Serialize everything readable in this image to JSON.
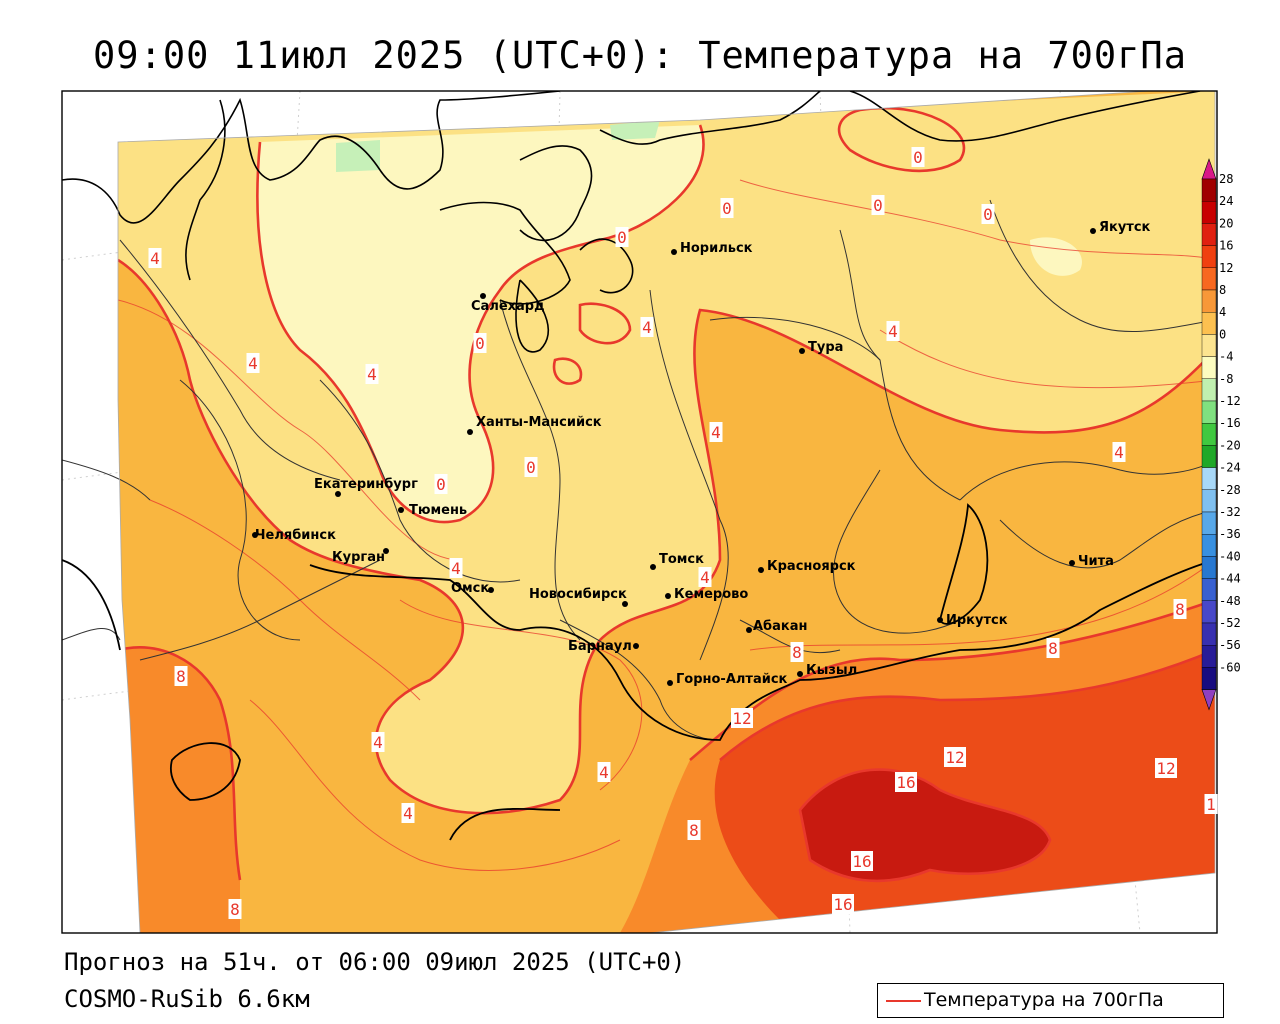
{
  "title": "09:00 11июл 2025 (UTC+0): Температура на 700гПа",
  "forecast_text": "Прогноз на 51ч. от 06:00 09июл 2025 (UTC+0)",
  "model_text": "COSMO-RuSib 6.6км",
  "legend_label": "Температура на 700гПа",
  "legend_line_color": "#e8382c",
  "colorbar": {
    "labels": [
      "28",
      "24",
      "20",
      "16",
      "12",
      "8",
      "4",
      "0",
      "-4",
      "-8",
      "-12",
      "-16",
      "-20",
      "-24",
      "-28",
      "-32",
      "-36",
      "-40",
      "-44",
      "-48",
      "-52",
      "-56",
      "-60"
    ],
    "colors": [
      "#a00000",
      "#c80000",
      "#e02010",
      "#f04010",
      "#f86820",
      "#f89838",
      "#fcc050",
      "#fce490",
      "#fcfcc0",
      "#c0f0b0",
      "#80e080",
      "#40c840",
      "#20a828",
      "#a8d8f8",
      "#80c0f0",
      "#58a8e8",
      "#3890e0",
      "#2878d0",
      "#3860d0",
      "#4848c8",
      "#3830b0",
      "#281c98",
      "#180c80"
    ],
    "top_arrow_color": "#d81888",
    "bottom_arrow_color": "#9040c0"
  },
  "cities": [
    {
      "name": "Якутск"
    },
    {
      "name": "Норильск"
    },
    {
      "name": "Салехард"
    },
    {
      "name": "Тура"
    },
    {
      "name": "Ханты-Мансийск"
    },
    {
      "name": "Екатеринбург"
    },
    {
      "name": "Тюмень"
    },
    {
      "name": "Челябинск"
    },
    {
      "name": "Курган"
    },
    {
      "name": "Омск"
    },
    {
      "name": "Новосибирск"
    },
    {
      "name": "Томск"
    },
    {
      "name": "Кемерово"
    },
    {
      "name": "Красноярск"
    },
    {
      "name": "Абакан"
    },
    {
      "name": "Барнаул"
    },
    {
      "name": "Горно-Алтайск"
    },
    {
      "name": "Кызыл"
    },
    {
      "name": "Иркутск"
    },
    {
      "name": "Чита"
    }
  ],
  "contour_labels": [
    "0",
    "0",
    "0",
    "0",
    "0",
    "0",
    "0",
    "0",
    "4",
    "4",
    "4",
    "4",
    "4",
    "4",
    "4",
    "4",
    "4",
    "4",
    "4",
    "4",
    "8",
    "8",
    "8",
    "8",
    "8",
    "8",
    "8",
    "12",
    "12",
    "12",
    "16",
    "16",
    "16",
    "1"
  ]
}
